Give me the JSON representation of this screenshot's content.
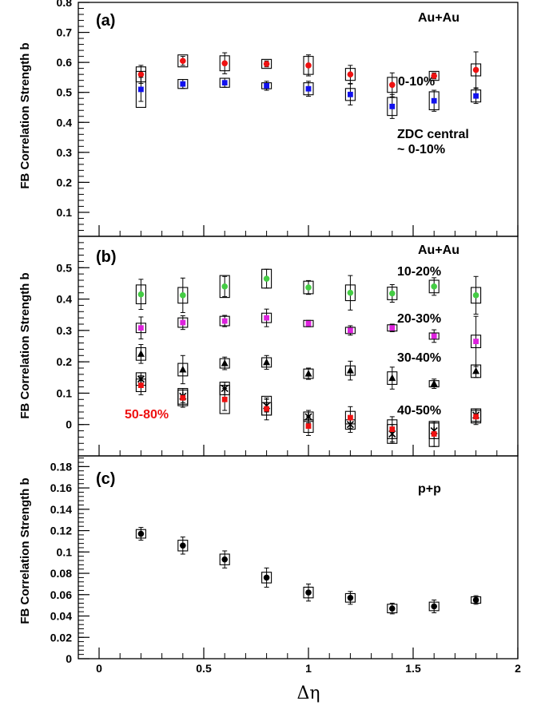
{
  "figure": {
    "xlabel": "Δη",
    "x_ticks": [
      "0",
      "0.5",
      "1",
      "1.5",
      "2"
    ]
  },
  "chart_data": [
    {
      "panel": "(a)",
      "type": "scatter",
      "xlabel": "Δη",
      "ylabel": "FB Correlation Strength b",
      "xlim": [
        -0.2,
        2.0
      ],
      "ylim": [
        0.02,
        0.8
      ],
      "y_ticks": [
        "0.1",
        "0.2",
        "0.3",
        "0.4",
        "0.5",
        "0.6",
        "0.7",
        "0.8"
      ],
      "annotations": [
        "Au+Au",
        "0-10%",
        "ZDC central",
        "~ 0-10%"
      ],
      "series": [
        {
          "name": "0-10%",
          "color": "#ee1111",
          "marker": "circle",
          "x": [
            0.2,
            0.4,
            0.6,
            0.8,
            1.0,
            1.2,
            1.4,
            1.6,
            1.8
          ],
          "y": [
            0.56,
            0.605,
            0.597,
            0.595,
            0.59,
            0.56,
            0.525,
            0.555,
            0.575
          ],
          "err": [
            0.03,
            0.015,
            0.035,
            0.01,
            0.035,
            0.03,
            0.04,
            0.01,
            0.06
          ],
          "sys": [
            0.025,
            0.02,
            0.025,
            0.015,
            0.03,
            0.02,
            0.025,
            0.015,
            0.02
          ]
        },
        {
          "name": "ZDC central ~ 0-10%",
          "color": "#1111ee",
          "marker": "square",
          "x": [
            0.2,
            0.4,
            0.6,
            0.8,
            1.0,
            1.2,
            1.4,
            1.6,
            1.8
          ],
          "y": [
            0.51,
            0.528,
            0.532,
            0.522,
            0.512,
            0.493,
            0.453,
            0.472,
            0.488
          ],
          "err": [
            0.04,
            0.015,
            0.015,
            0.015,
            0.025,
            0.035,
            0.04,
            0.035,
            0.025
          ],
          "sys": [
            0.06,
            0.015,
            0.015,
            0.01,
            0.02,
            0.02,
            0.03,
            0.03,
            0.02
          ]
        }
      ]
    },
    {
      "panel": "(b)",
      "type": "scatter",
      "xlabel": "Δη",
      "ylabel": "FB Correlation Strength b",
      "xlim": [
        -0.2,
        2.0
      ],
      "ylim": [
        -0.1,
        0.6
      ],
      "y_ticks": [
        "0",
        "0.1",
        "0.2",
        "0.3",
        "0.4",
        "0.5"
      ],
      "annotations": [
        "Au+Au",
        "10-20%",
        "20-30%",
        "30-40%",
        "40-50%",
        "50-80%"
      ],
      "series": [
        {
          "name": "10-20%",
          "color": "#44cc44",
          "marker": "circle",
          "x": [
            0.2,
            0.4,
            0.6,
            0.8,
            1.0,
            1.2,
            1.4,
            1.6,
            1.8
          ],
          "y": [
            0.415,
            0.412,
            0.44,
            0.465,
            0.437,
            0.42,
            0.418,
            0.44,
            0.412
          ],
          "err": [
            0.048,
            0.055,
            0.032,
            0.03,
            0.022,
            0.055,
            0.028,
            0.028,
            0.06
          ],
          "sys": [
            0.03,
            0.025,
            0.035,
            0.03,
            0.02,
            0.025,
            0.02,
            0.02,
            0.025
          ]
        },
        {
          "name": "20-30%",
          "color": "#dd22dd",
          "marker": "square",
          "x": [
            0.2,
            0.4,
            0.6,
            0.8,
            1.0,
            1.2,
            1.4,
            1.6,
            1.8
          ],
          "y": [
            0.308,
            0.325,
            0.33,
            0.34,
            0.322,
            0.3,
            0.308,
            0.282,
            0.265
          ],
          "err": [
            0.035,
            0.022,
            0.018,
            0.028,
            0.01,
            0.015,
            0.012,
            0.02,
            0.08
          ],
          "sys": [
            0.015,
            0.015,
            0.015,
            0.015,
            0.01,
            0.01,
            0.01,
            0.01,
            0.02
          ]
        },
        {
          "name": "30-40%",
          "color": "#000000",
          "marker": "triangle",
          "x": [
            0.2,
            0.4,
            0.6,
            0.8,
            1.0,
            1.2,
            1.4,
            1.6,
            1.8
          ],
          "y": [
            0.225,
            0.175,
            0.195,
            0.198,
            0.162,
            0.172,
            0.148,
            0.13,
            0.17
          ],
          "err": [
            0.03,
            0.045,
            0.02,
            0.022,
            0.018,
            0.03,
            0.035,
            0.015,
            0.02
          ],
          "sys": [
            0.02,
            0.02,
            0.015,
            0.015,
            0.015,
            0.015,
            0.02,
            0.01,
            0.02
          ]
        },
        {
          "name": "40-50%",
          "color": "#000000",
          "marker": "star",
          "x": [
            0.2,
            0.4,
            0.6,
            0.8,
            1.0,
            1.2,
            1.4,
            1.6,
            1.8
          ],
          "y": [
            0.145,
            0.09,
            0.115,
            0.06,
            0.025,
            0.0,
            -0.03,
            -0.02,
            0.03
          ],
          "err": [
            0.02,
            0.02,
            0.02,
            0.02,
            0.02,
            0.025,
            0.03,
            0.025,
            0.02
          ],
          "sys": [
            0.02,
            0.025,
            0.02,
            0.03,
            0.015,
            0.015,
            0.03,
            0.025,
            0.02
          ]
        },
        {
          "name": "50-80%",
          "color": "#ee1111",
          "marker": "square",
          "x": [
            0.2,
            0.4,
            0.6,
            0.8,
            1.0,
            1.2,
            1.4,
            1.6,
            1.8
          ],
          "y": [
            0.125,
            0.085,
            0.08,
            0.05,
            -0.005,
            0.022,
            -0.015,
            -0.03,
            0.025
          ],
          "err": [
            0.03,
            0.03,
            0.035,
            0.035,
            0.03,
            0.035,
            0.04,
            0.04,
            0.025
          ],
          "sys": [
            0.02,
            0.025,
            0.045,
            0.02,
            0.02,
            0.02,
            0.03,
            0.04,
            0.02
          ]
        }
      ]
    },
    {
      "panel": "(c)",
      "type": "scatter",
      "xlabel": "Δη",
      "ylabel": "FB Correlation Strength b",
      "xlim": [
        -0.2,
        2.0
      ],
      "ylim": [
        0.0,
        0.19
      ],
      "y_ticks": [
        "0",
        "0.02",
        "0.04",
        "0.06",
        "0.08",
        "0.1",
        "0.12",
        "0.14",
        "0.16",
        "0.18"
      ],
      "annotations": [
        "p+p"
      ],
      "series": [
        {
          "name": "p+p",
          "color": "#000000",
          "marker": "circle",
          "x": [
            0.2,
            0.4,
            0.6,
            0.8,
            1.0,
            1.2,
            1.4,
            1.6,
            1.8
          ],
          "y": [
            0.117,
            0.106,
            0.093,
            0.076,
            0.062,
            0.057,
            0.047,
            0.049,
            0.055
          ],
          "err": [
            0.006,
            0.008,
            0.008,
            0.009,
            0.008,
            0.006,
            0.005,
            0.006,
            0.004
          ],
          "sys": [
            0.004,
            0.005,
            0.005,
            0.005,
            0.005,
            0.004,
            0.004,
            0.004,
            0.003
          ]
        }
      ]
    }
  ]
}
